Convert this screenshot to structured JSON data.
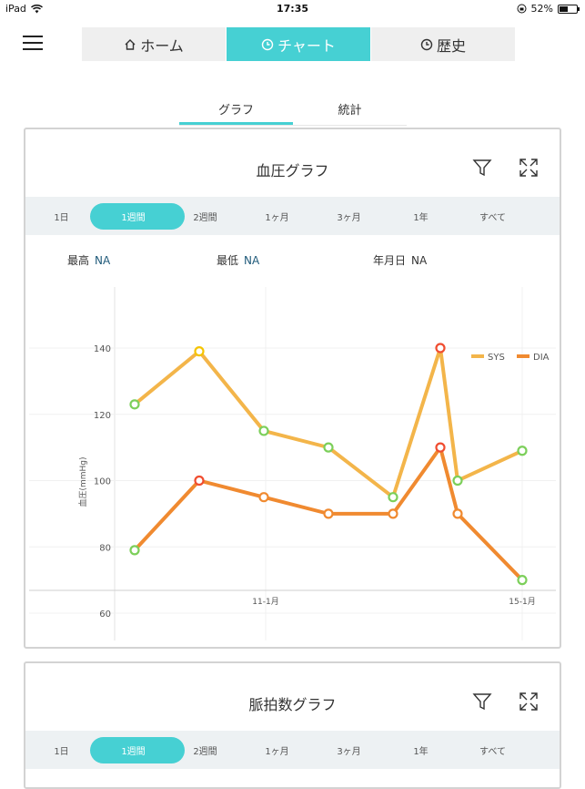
{
  "status_bar": {
    "device": "iPad",
    "time": "17:35",
    "battery": "52%",
    "battery_level": 0.52
  },
  "header": {
    "tabs": [
      {
        "label": "ホーム",
        "icon": "home-icon"
      },
      {
        "label": "チャート",
        "icon": "clock-icon",
        "active": true
      },
      {
        "label": "歴史",
        "icon": "clock-icon"
      }
    ]
  },
  "sub_tabs": [
    {
      "label": "グラフ",
      "active": true
    },
    {
      "label": "統計"
    }
  ],
  "bp_card": {
    "title": "血圧グラフ",
    "ranges": [
      "1日",
      "1週間",
      "2週間",
      "1ヶ月",
      "3ヶ月",
      "1年",
      "すべて"
    ],
    "active_range": "1週間",
    "stats": {
      "max_label": "最高",
      "max_value": "NA",
      "min_label": "最低",
      "min_value": "NA",
      "date_label": "年月日",
      "date_value": "NA"
    }
  },
  "pulse_card": {
    "title": "脈拍数グラフ",
    "ranges": [
      "1日",
      "1週間",
      "2週間",
      "1ヶ月",
      "3ヶ月",
      "1年",
      "すべて"
    ],
    "active_range": "1週間"
  },
  "chart_data": {
    "type": "line",
    "ylabel": "血圧(mmHg)",
    "xlabel": "",
    "ylim": [
      60,
      150
    ],
    "y_ticks": [
      60,
      80,
      100,
      120,
      140
    ],
    "x_tick_labels": [
      "11-1月",
      "15-1月"
    ],
    "legend_position": "top-right",
    "grid": true,
    "series": [
      {
        "name": "SYS",
        "color": "#f3b54a",
        "points": [
          123,
          139,
          115,
          110,
          95,
          140,
          100,
          109
        ],
        "marker_colors": [
          "#7ccf5a",
          "#f5c400",
          "#7ccf5a",
          "#7ccf5a",
          "#7ccf5a",
          "#f04d30",
          "#7ccf5a",
          "#7ccf5a"
        ]
      },
      {
        "name": "DIA",
        "color": "#f08a30",
        "points": [
          79,
          100,
          95,
          90,
          90,
          110,
          90,
          70
        ],
        "marker_colors": [
          "#7ccf5a",
          "#f04d30",
          "#f08a30",
          "#f08a30",
          "#f08a30",
          "#f04d30",
          "#f08a30",
          "#7ccf5a"
        ]
      }
    ]
  }
}
